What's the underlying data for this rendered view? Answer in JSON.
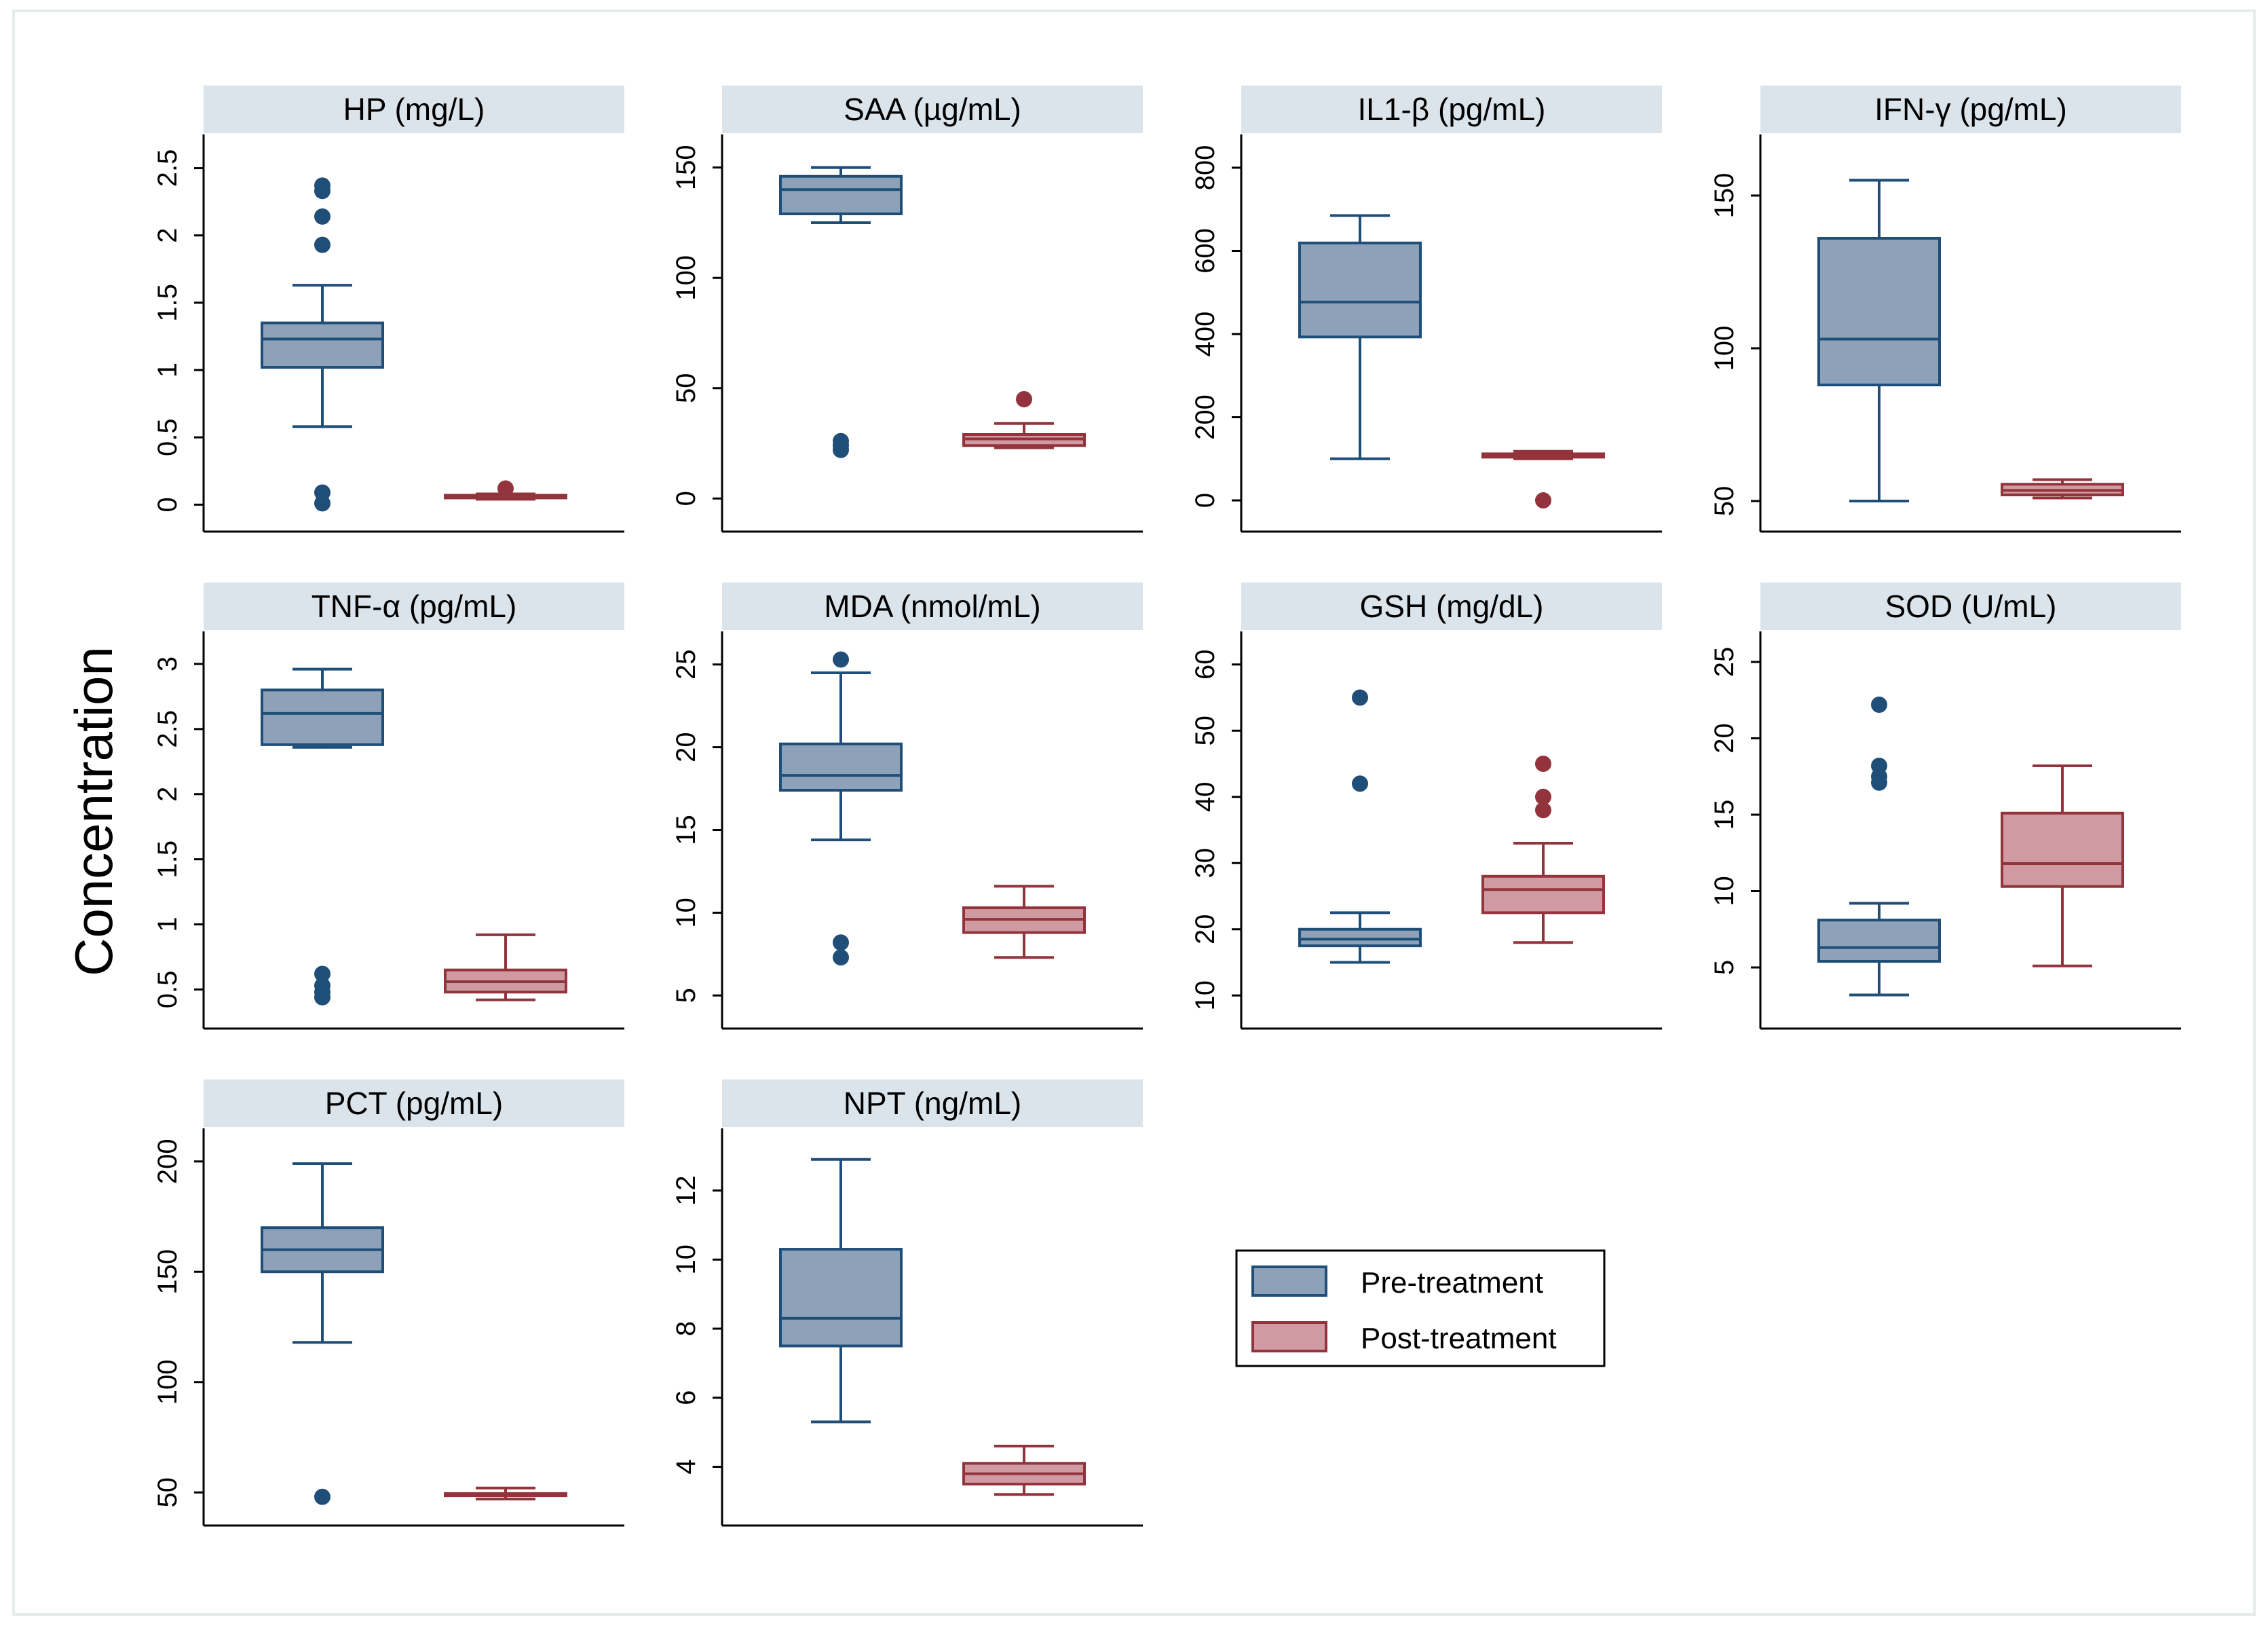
{
  "figure": {
    "ylabel": "Concentration",
    "legend": {
      "placement": "inside-bottom-right",
      "entries": [
        {
          "label": "Pre-treatment",
          "color": "#8da2b8",
          "edge": "#1f4e79"
        },
        {
          "label": "Post-treatment",
          "color": "#cf9aa1",
          "edge": "#93343d"
        }
      ]
    }
  },
  "chart_data": [
    {
      "type": "box",
      "title": "HP (mg/L)",
      "ylim": [
        -0.2,
        2.75
      ],
      "yticks": [
        0,
        0.5,
        1,
        1.5,
        2,
        2.5
      ],
      "yticklabels": [
        "0",
        "0.5",
        "1",
        "1.5",
        "2",
        "2.5"
      ],
      "series": [
        {
          "name": "Pre-treatment",
          "whisker_low": 0.58,
          "q1": 1.02,
          "median": 1.23,
          "q3": 1.35,
          "whisker_high": 1.63,
          "outliers": [
            2.37,
            2.33,
            2.14,
            1.93,
            0.09,
            0.01
          ]
        },
        {
          "name": "Post-treatment",
          "whisker_low": 0.04,
          "q1": 0.05,
          "median": 0.06,
          "q3": 0.07,
          "whisker_high": 0.08,
          "outliers": [
            0.12
          ]
        }
      ]
    },
    {
      "type": "box",
      "title": "SAA (µg/mL)",
      "ylim": [
        -15,
        165
      ],
      "yticks": [
        0,
        50,
        100,
        150
      ],
      "yticklabels": [
        "0",
        "50",
        "100",
        "150"
      ],
      "series": [
        {
          "name": "Pre-treatment",
          "whisker_low": 125,
          "q1": 129,
          "median": 140,
          "q3": 146,
          "whisker_high": 150,
          "outliers": [
            26,
            24,
            22
          ]
        },
        {
          "name": "Post-treatment",
          "whisker_low": 23,
          "q1": 24,
          "median": 27,
          "q3": 29,
          "whisker_high": 34,
          "outliers": [
            45
          ]
        }
      ]
    },
    {
      "type": "box",
      "title": "IL1-β (pg/mL)",
      "ylim": [
        -75,
        880
      ],
      "yticks": [
        0,
        200,
        400,
        600,
        800
      ],
      "yticklabels": [
        "0",
        "200",
        "400",
        "600",
        "800"
      ],
      "series": [
        {
          "name": "Pre-treatment",
          "whisker_low": 100,
          "q1": 393,
          "median": 477,
          "q3": 619,
          "whisker_high": 685,
          "outliers": []
        },
        {
          "name": "Post-treatment",
          "whisker_low": 100,
          "q1": 104,
          "median": 108,
          "q3": 112,
          "whisker_high": 118,
          "outliers": [
            0
          ]
        }
      ]
    },
    {
      "type": "box",
      "title": "IFN-γ (pg/mL)",
      "ylim": [
        40,
        170
      ],
      "yticks": [
        50,
        100,
        150
      ],
      "yticklabels": [
        "50",
        "100",
        "150"
      ],
      "series": [
        {
          "name": "Pre-treatment",
          "whisker_low": 50,
          "q1": 88,
          "median": 103,
          "q3": 136,
          "whisker_high": 155,
          "outliers": []
        },
        {
          "name": "Post-treatment",
          "whisker_low": 51,
          "q1": 52,
          "median": 53.5,
          "q3": 55.5,
          "whisker_high": 57,
          "outliers": []
        }
      ]
    },
    {
      "type": "box",
      "title": "TNF-α (pg/mL)",
      "ylim": [
        0.2,
        3.25
      ],
      "yticks": [
        0.5,
        1,
        1.5,
        2,
        2.5,
        3
      ],
      "yticklabels": [
        "0.5",
        "1",
        "1.5",
        "2",
        "2.5",
        "3"
      ],
      "series": [
        {
          "name": "Pre-treatment",
          "whisker_low": 2.36,
          "q1": 2.38,
          "median": 2.62,
          "q3": 2.8,
          "whisker_high": 2.96,
          "outliers": [
            0.62,
            0.53,
            0.48,
            0.44
          ]
        },
        {
          "name": "Post-treatment",
          "whisker_low": 0.42,
          "q1": 0.48,
          "median": 0.56,
          "q3": 0.65,
          "whisker_high": 0.92,
          "outliers": []
        }
      ]
    },
    {
      "type": "box",
      "title": "MDA (nmol/mL)",
      "ylim": [
        3,
        27
      ],
      "yticks": [
        5,
        10,
        15,
        20,
        25
      ],
      "yticklabels": [
        "5",
        "10",
        "15",
        "20",
        "25"
      ],
      "series": [
        {
          "name": "Pre-treatment",
          "whisker_low": 14.4,
          "q1": 17.4,
          "median": 18.3,
          "q3": 20.2,
          "whisker_high": 24.5,
          "outliers": [
            25.3,
            8.2,
            7.3
          ]
        },
        {
          "name": "Post-treatment",
          "whisker_low": 7.3,
          "q1": 8.8,
          "median": 9.6,
          "q3": 10.3,
          "whisker_high": 11.6,
          "outliers": []
        }
      ]
    },
    {
      "type": "box",
      "title": "GSH (mg/dL)",
      "ylim": [
        5,
        65
      ],
      "yticks": [
        10,
        20,
        30,
        40,
        50,
        60
      ],
      "yticklabels": [
        "10",
        "20",
        "30",
        "40",
        "50",
        "60"
      ],
      "series": [
        {
          "name": "Pre-treatment",
          "whisker_low": 15,
          "q1": 17.5,
          "median": 18.5,
          "q3": 20,
          "whisker_high": 22.5,
          "outliers": [
            55,
            42
          ]
        },
        {
          "name": "Post-treatment",
          "whisker_low": 18,
          "q1": 22.5,
          "median": 26,
          "q3": 28,
          "whisker_high": 33,
          "outliers": [
            45,
            40,
            38
          ]
        }
      ]
    },
    {
      "type": "box",
      "title": "SOD (U/mL)",
      "ylim": [
        1,
        27
      ],
      "yticks": [
        5,
        10,
        15,
        20,
        25
      ],
      "yticklabels": [
        "5",
        "10",
        "15",
        "20",
        "25"
      ],
      "series": [
        {
          "name": "Pre-treatment",
          "whisker_low": 3.2,
          "q1": 5.4,
          "median": 6.3,
          "q3": 8.1,
          "whisker_high": 9.2,
          "outliers": [
            22.2,
            18.2,
            17.5,
            17.1
          ]
        },
        {
          "name": "Post-treatment",
          "whisker_low": 5.1,
          "q1": 10.3,
          "median": 11.8,
          "q3": 15.1,
          "whisker_high": 18.2,
          "outliers": []
        }
      ]
    },
    {
      "type": "box",
      "title": "PCT (pg/mL)",
      "ylim": [
        35,
        215
      ],
      "yticks": [
        50,
        100,
        150,
        200
      ],
      "yticklabels": [
        "50",
        "100",
        "150",
        "200"
      ],
      "series": [
        {
          "name": "Pre-treatment",
          "whisker_low": 118,
          "q1": 150,
          "median": 160,
          "q3": 170,
          "whisker_high": 199,
          "outliers": [
            48
          ]
        },
        {
          "name": "Post-treatment",
          "whisker_low": 47,
          "q1": 48.5,
          "median": 49,
          "q3": 49.5,
          "whisker_high": 52,
          "outliers": []
        }
      ]
    },
    {
      "type": "box",
      "title": "NPT (ng/mL)",
      "ylim": [
        2.3,
        13.8
      ],
      "yticks": [
        4,
        6,
        8,
        10,
        12
      ],
      "yticklabels": [
        "4",
        "6",
        "8",
        "10",
        "12"
      ],
      "series": [
        {
          "name": "Pre-treatment",
          "whisker_low": 5.3,
          "q1": 7.5,
          "median": 8.3,
          "q3": 10.3,
          "whisker_high": 12.9,
          "outliers": []
        },
        {
          "name": "Post-treatment",
          "whisker_low": 3.2,
          "q1": 3.5,
          "median": 3.8,
          "q3": 4.1,
          "whisker_high": 4.6,
          "outliers": []
        }
      ]
    }
  ]
}
